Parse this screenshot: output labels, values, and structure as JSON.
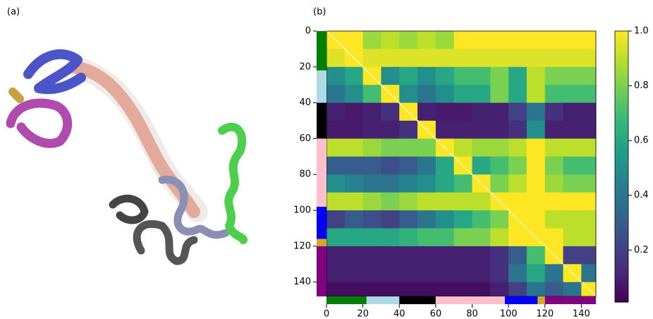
{
  "panel_a": {
    "label": "(a)"
  },
  "chart_data": {
    "type": "heatmap",
    "label": "(b)",
    "colormap": "viridis",
    "bins": [
      0,
      10,
      20,
      30,
      40,
      50,
      60,
      70,
      80,
      90,
      100,
      110,
      120,
      130,
      140,
      148
    ],
    "values": [
      [
        1,
        1,
        0.85,
        0.9,
        0.85,
        0.9,
        0.85,
        1,
        1,
        1,
        1,
        1,
        1,
        1,
        1
      ],
      [
        0.95,
        1,
        0.95,
        0.95,
        0.95,
        0.95,
        0.95,
        0.95,
        0.95,
        0.95,
        0.95,
        0.95,
        0.95,
        0.95,
        0.95
      ],
      [
        0.5,
        0.6,
        1,
        0.5,
        0.6,
        0.5,
        0.6,
        0.7,
        0.7,
        0.8,
        0.6,
        0.9,
        0.8,
        0.8,
        0.8
      ],
      [
        0.4,
        0.5,
        0.7,
        1,
        0.5,
        0.4,
        0.5,
        0.6,
        0.6,
        0.8,
        0.6,
        0.9,
        0.7,
        0.7,
        0.7
      ],
      [
        0.1,
        0.08,
        0.1,
        0.15,
        1,
        0.1,
        0.08,
        0.08,
        0.1,
        0.1,
        0.2,
        0.4,
        0.15,
        0.1,
        0.1
      ],
      [
        0.08,
        0.08,
        0.1,
        0.1,
        0.15,
        1,
        0.1,
        0.1,
        0.1,
        0.1,
        0.15,
        0.5,
        0.1,
        0.1,
        0.1
      ],
      [
        0.9,
        0.9,
        0.85,
        0.8,
        0.8,
        0.8,
        1,
        0.9,
        0.85,
        0.85,
        0.9,
        1,
        0.9,
        0.9,
        0.9
      ],
      [
        0.3,
        0.3,
        0.3,
        0.25,
        0.3,
        0.4,
        0.6,
        1,
        0.6,
        0.7,
        0.8,
        1,
        0.8,
        0.7,
        0.7
      ],
      [
        0.5,
        0.45,
        0.4,
        0.4,
        0.45,
        0.5,
        0.6,
        0.7,
        1,
        0.8,
        0.9,
        1,
        0.85,
        0.8,
        0.8
      ],
      [
        0.9,
        0.9,
        0.85,
        0.8,
        0.85,
        0.9,
        0.9,
        0.9,
        0.9,
        1,
        1,
        1,
        1,
        1,
        1
      ],
      [
        0.2,
        0.3,
        0.25,
        0.2,
        0.3,
        0.4,
        0.5,
        0.6,
        0.7,
        0.8,
        1,
        1,
        0.9,
        0.9,
        0.9
      ],
      [
        0.6,
        0.6,
        0.6,
        0.6,
        0.65,
        0.7,
        0.7,
        0.8,
        0.8,
        0.9,
        1,
        1,
        1,
        0.9,
        0.9
      ],
      [
        0.1,
        0.1,
        0.1,
        0.1,
        0.1,
        0.1,
        0.1,
        0.1,
        0.1,
        0.15,
        0.3,
        0.7,
        1,
        0.2,
        0.2
      ],
      [
        0.1,
        0.1,
        0.1,
        0.1,
        0.1,
        0.1,
        0.1,
        0.1,
        0.1,
        0.15,
        0.4,
        0.6,
        0.4,
        1,
        0.4
      ],
      [
        0.05,
        0.05,
        0.05,
        0.05,
        0.05,
        0.05,
        0.05,
        0.05,
        0.05,
        0.1,
        0.2,
        0.4,
        0.3,
        0.4,
        1
      ]
    ],
    "segments": [
      {
        "start": 0,
        "end": 22,
        "color": "#008000"
      },
      {
        "start": 22,
        "end": 40,
        "color": "#add8e6"
      },
      {
        "start": 40,
        "end": 60,
        "color": "#000000"
      },
      {
        "start": 60,
        "end": 98,
        "color": "#ffc0cb"
      },
      {
        "start": 98,
        "end": 116,
        "color": "#0000ff"
      },
      {
        "start": 116,
        "end": 120,
        "color": "#daa520"
      },
      {
        "start": 120,
        "end": 148,
        "color": "#800080"
      }
    ],
    "xlim": [
      0,
      148
    ],
    "ylim": [
      0,
      148
    ],
    "xticks": [
      0,
      20,
      40,
      60,
      80,
      100,
      120,
      140
    ],
    "yticks": [
      0,
      20,
      40,
      60,
      80,
      100,
      120,
      140
    ],
    "clim": [
      0.01,
      1
    ],
    "cticks": [
      0.2,
      0.4,
      0.6,
      0.8,
      {
        "value": 1,
        "label": "1.0"
      }
    ]
  }
}
